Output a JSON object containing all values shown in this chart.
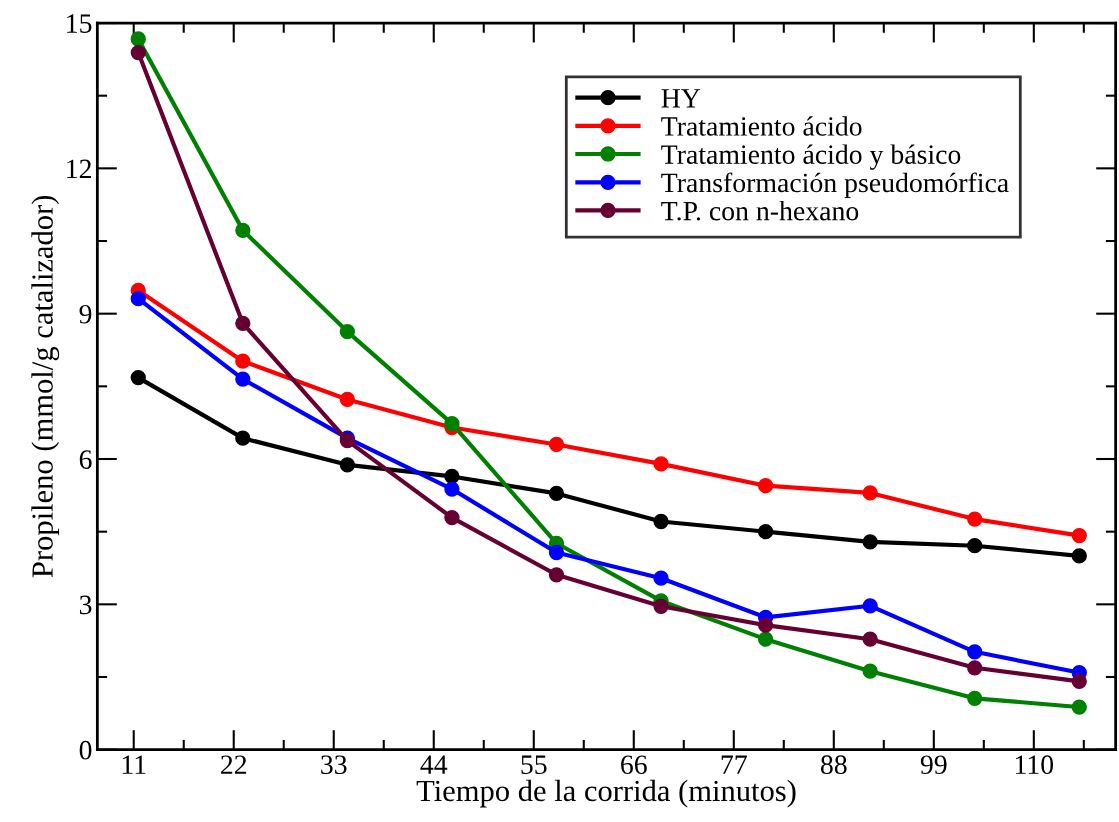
{
  "chart_data": {
    "type": "line",
    "xlabel": "Tiempo de la corrida (minutos)",
    "ylabel": "Propileno (mmol/g catalizador)",
    "x": [
      11.5,
      23,
      34.5,
      46,
      57.5,
      69,
      80.5,
      92,
      103.5,
      115
    ],
    "series": [
      {
        "name": "HY",
        "color": "#000000",
        "values": [
          7.68,
          6.43,
          5.88,
          5.64,
          5.29,
          4.71,
          4.5,
          4.29,
          4.21,
          4.0
        ]
      },
      {
        "name": "Tratamiento ácido",
        "color": "#ff0000",
        "values": [
          9.48,
          8.02,
          7.23,
          6.65,
          6.3,
          5.9,
          5.45,
          5.3,
          4.76,
          4.42
        ]
      },
      {
        "name": "Tratamiento ácido y básico",
        "color": "#008000",
        "values": [
          14.67,
          10.72,
          8.63,
          6.73,
          4.26,
          3.07,
          2.28,
          1.62,
          1.06,
          0.88
        ]
      },
      {
        "name": "Transformación pseudomórfica",
        "color": "#0000ff",
        "values": [
          9.31,
          7.65,
          6.43,
          5.38,
          4.07,
          3.54,
          2.73,
          2.97,
          2.02,
          1.59
        ]
      },
      {
        "name": "T.P. con n-hexano",
        "color": "#660033",
        "values": [
          14.39,
          8.8,
          6.38,
          4.79,
          3.61,
          2.96,
          2.57,
          2.28,
          1.69,
          1.41
        ]
      }
    ],
    "xlim": [
      7,
      119
    ],
    "ylim": [
      0,
      15
    ],
    "xticks": [
      11,
      {
        "value": 16.5,
        "label": null
      },
      22,
      {
        "value": 27.5,
        "label": null
      },
      33,
      {
        "value": 38.5,
        "label": null
      },
      44,
      {
        "value": 49.5,
        "label": null
      },
      55,
      {
        "value": 60.5,
        "label": null
      },
      66,
      {
        "value": 71.5,
        "label": null
      },
      77,
      {
        "value": 82.5,
        "label": null
      },
      88,
      {
        "value": 93.5,
        "label": null
      },
      99,
      {
        "value": 104.5,
        "label": null
      },
      110,
      {
        "value": 115.5,
        "label": null
      }
    ],
    "yticks": [
      0,
      {
        "value": 1.5,
        "label": null
      },
      3,
      {
        "value": 4.5,
        "label": null
      },
      6,
      {
        "value": 7.5,
        "label": null
      },
      9,
      {
        "value": 10.5,
        "label": null
      },
      12,
      {
        "value": 13.5,
        "label": null
      },
      15
    ],
    "marker": "circle",
    "line_style": "solid",
    "grid": false,
    "legend": "top right"
  }
}
